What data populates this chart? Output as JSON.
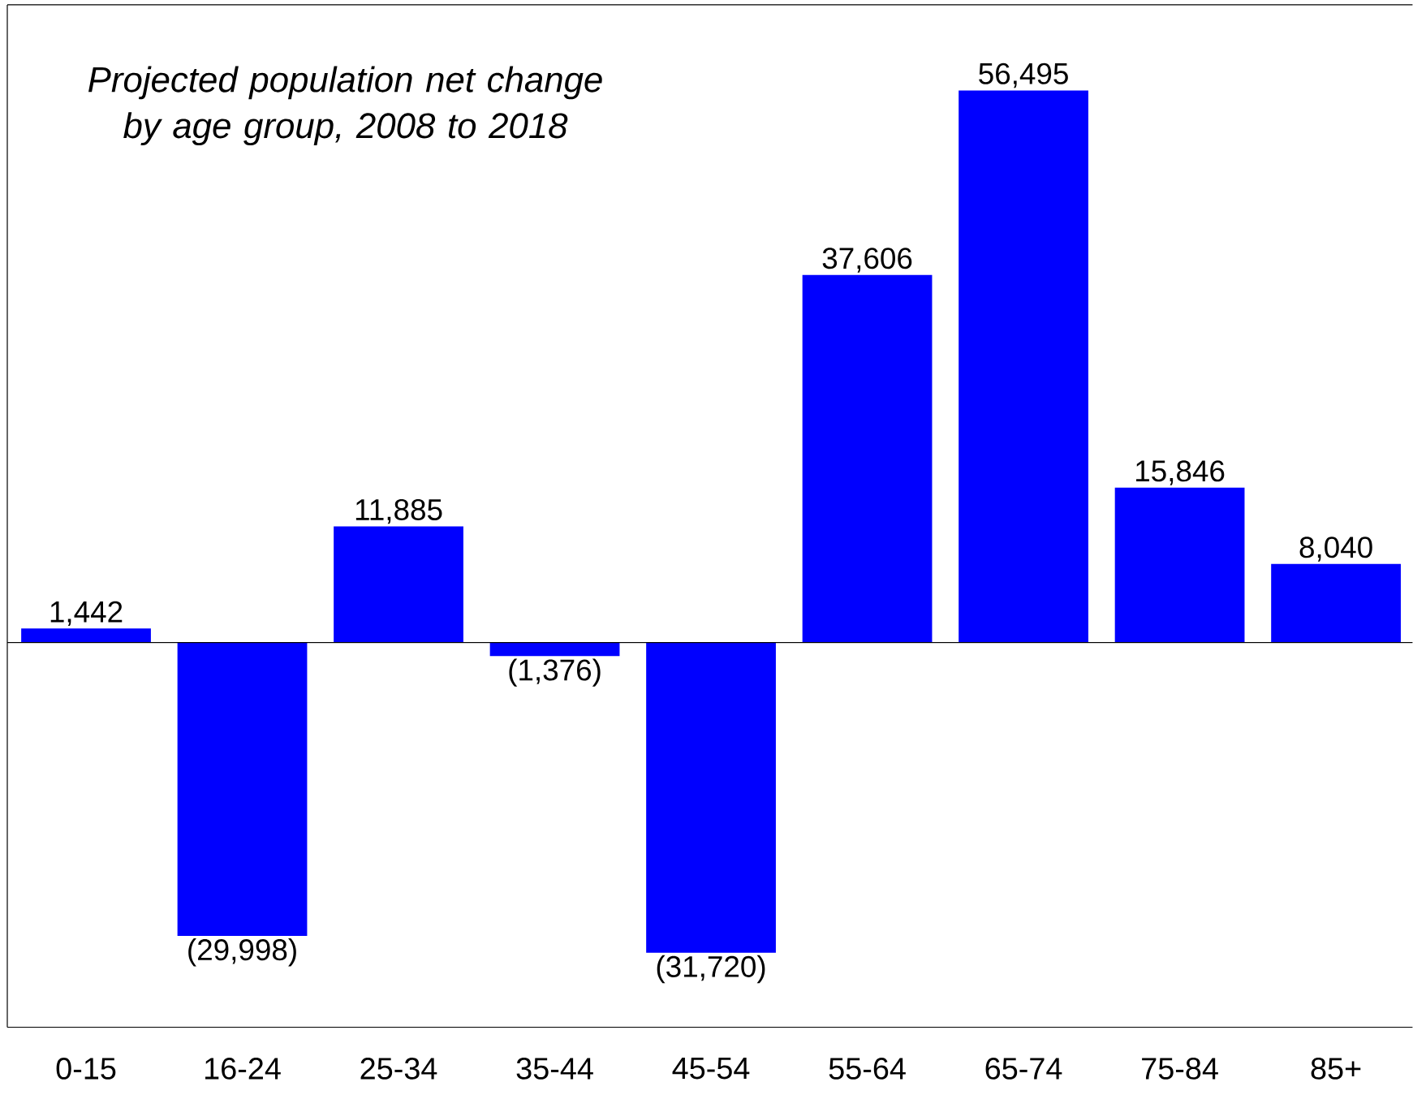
{
  "chart_data": {
    "type": "bar",
    "title": "Projected population net change by age group, 2008 to 2018",
    "categories": [
      "0-15",
      "16-24",
      "25-34",
      "35-44",
      "45-54",
      "55-64",
      "65-74",
      "75-84",
      "85+"
    ],
    "values": [
      1442,
      -29998,
      11885,
      -1376,
      -31720,
      37606,
      56495,
      15846,
      8040
    ],
    "value_labels": [
      "1,442",
      "(29,998)",
      "11,885",
      "(1,376)",
      "(31,720)",
      "37,606",
      "56,495",
      "15,846",
      "8,040"
    ],
    "color": "#0000ff",
    "ylim": [
      -39350,
      65250
    ]
  }
}
